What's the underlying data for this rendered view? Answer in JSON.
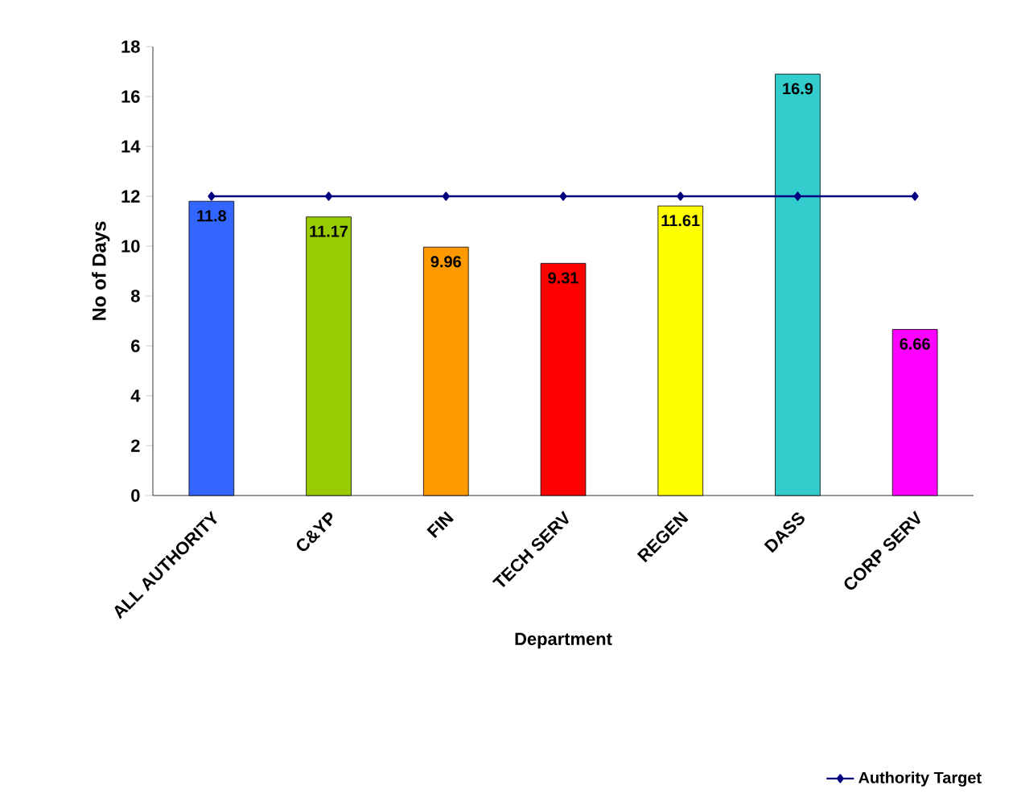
{
  "chart_data": {
    "type": "bar",
    "xlabel": "Department",
    "ylabel": "No of Days",
    "categories": [
      "ALL AUTHORITY",
      "C&YP",
      "FIN",
      "TECH SERV",
      "REGEN",
      "DASS",
      "CORP SERV"
    ],
    "series": [
      {
        "type": "bar",
        "values": [
          11.8,
          11.17,
          9.96,
          9.31,
          11.61,
          16.9,
          6.66
        ],
        "colors": [
          "#3366ff",
          "#99cc00",
          "#ff9900",
          "#ff0000",
          "#ffff00",
          "#33cccc",
          "#ff00ff"
        ],
        "value_labels": [
          "11.8",
          "11.17",
          "9.96",
          "9.31",
          "11.61",
          "16.9",
          "6.66"
        ]
      },
      {
        "type": "line",
        "name": "Authority Target",
        "color": "#000080",
        "values": [
          12,
          12,
          12,
          12,
          12,
          12,
          12
        ],
        "marker": "diamond"
      }
    ],
    "ylim": [
      0,
      18
    ],
    "yticks": [
      0,
      2,
      4,
      6,
      8,
      10,
      12,
      14,
      16,
      18
    ],
    "grid": false,
    "legend": "bottom right"
  }
}
